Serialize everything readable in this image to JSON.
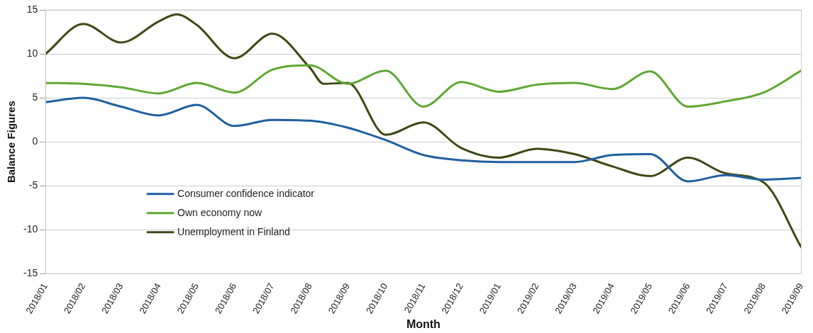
{
  "chart_data": {
    "type": "line",
    "xlabel": "Month",
    "ylabel": "Balance Figures",
    "x": [
      "2018-01",
      "2018-02",
      "2018-03",
      "2018-04",
      "2018-05",
      "2018-06",
      "2018-07",
      "2018-08",
      "2018-09",
      "2018-10",
      "2018-11",
      "2018-12",
      "2019-01",
      "2019-02",
      "2019-03",
      "2019-04",
      "2019-05",
      "2019-06",
      "2019-07",
      "2019-08",
      "2019-09"
    ],
    "series": [
      {
        "name": "Consumer confidence indicator",
        "color": "#1f5fa0",
        "values": [
          4.5,
          5.0,
          4.0,
          3.0,
          4.2,
          1.8,
          2.5,
          2.4,
          1.6,
          0.2,
          -1.5,
          -2.1,
          -2.3,
          -2.3,
          -2.3,
          -1.5,
          -1.4,
          -4.5,
          -3.8,
          -4.3,
          -4.1
        ]
      },
      {
        "name": "Own economy now",
        "color": "#5ea832",
        "values": [
          6.7,
          6.6,
          6.2,
          5.5,
          6.7,
          5.6,
          8.2,
          8.7,
          6.6,
          8.1,
          4.0,
          6.8,
          5.7,
          6.5,
          6.7,
          6.0,
          8.0,
          4.0,
          4.6,
          5.6,
          8.1
        ]
      },
      {
        "name": "Unemployment in Finland",
        "color": "#3b4a14",
        "x": [
          "2018-01",
          "2018-02",
          "2018-03",
          "2018-04",
          "2018-04-15",
          "2018-05",
          "2018-06",
          "2018-07",
          "2018-08",
          "2018-08-12",
          "2018-09",
          "2018-10",
          "2018-11",
          "2018-12",
          "2019-01",
          "2019-02",
          "2019-03",
          "2019-04",
          "2019-05",
          "2019-06",
          "2019-07",
          "2019-08",
          "2019-09"
        ],
        "values": [
          10.0,
          13.4,
          11.3,
          13.7,
          14.5,
          13.3,
          9.5,
          12.3,
          8.4,
          6.6,
          6.7,
          0.8,
          2.2,
          -0.7,
          -1.8,
          -0.8,
          -1.4,
          -2.8,
          -3.9,
          -1.8,
          -3.6,
          -4.6,
          -12.0
        ]
      }
    ],
    "xlim": [
      "2018-01",
      "2019-09"
    ],
    "xticks": [
      {
        "value": "2018-01",
        "label": "2018/01"
      },
      {
        "value": "2018-02",
        "label": "2018/02"
      },
      {
        "value": "2018-03",
        "label": "2018/03"
      },
      {
        "value": "2018-04",
        "label": "2018/04"
      },
      {
        "value": "2018-05",
        "label": "2018/05"
      },
      {
        "value": "2018-06",
        "label": "2018/06"
      },
      {
        "value": "2018-07",
        "label": "2018/07"
      },
      {
        "value": "2018-08",
        "label": "2018/08"
      },
      {
        "value": "2018-09",
        "label": "2018/09"
      },
      {
        "value": "2018-10",
        "label": "2018/10"
      },
      {
        "value": "2018-11",
        "label": "2018/11"
      },
      {
        "value": "2018-12",
        "label": "2018/12"
      },
      {
        "value": "2019-01",
        "label": "2019/01"
      },
      {
        "value": "2019-02",
        "label": "2019/02"
      },
      {
        "value": "2019-03",
        "label": "2019/03"
      },
      {
        "value": "2019-04",
        "label": "2019/04"
      },
      {
        "value": "2019-05",
        "label": "2019/05"
      },
      {
        "value": "2019-06",
        "label": "2019/06"
      },
      {
        "value": "2019-07",
        "label": "2019/07"
      },
      {
        "value": "2019-08",
        "label": "2019/08"
      },
      {
        "value": "2019-09",
        "label": "2019/09"
      }
    ],
    "ylim": [
      -15,
      15
    ],
    "yticks": [
      -15,
      -10,
      -5,
      0,
      5,
      10,
      15
    ],
    "grid": "y",
    "legend": "bottom left",
    "marker": "none",
    "line_style": "solid"
  }
}
